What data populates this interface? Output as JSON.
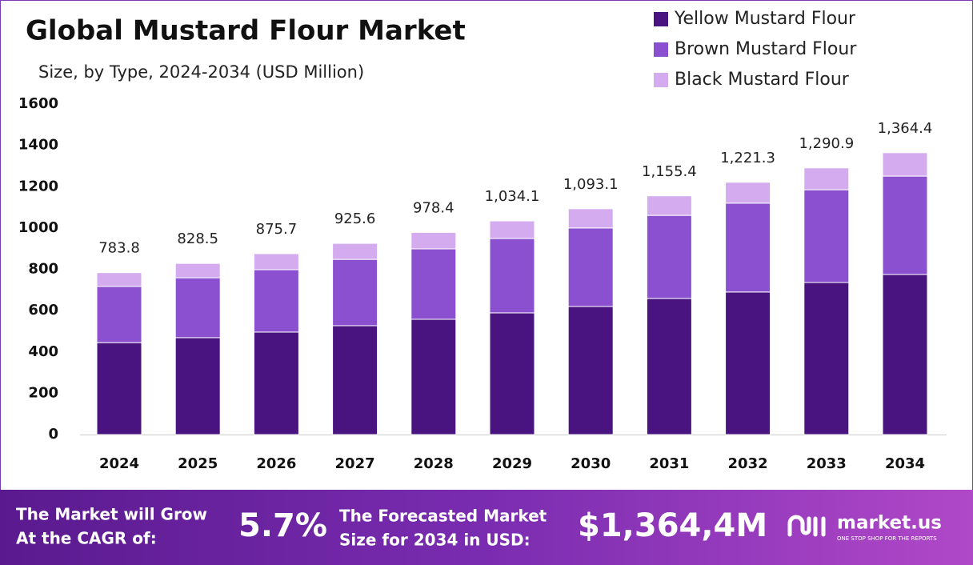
{
  "chart_data": {
    "type": "stacked_bar",
    "title": "Global Mustard Flour Market",
    "subtitle": "Size, by Type, 2024-2034 (USD Million)",
    "categories": [
      "2024",
      "2025",
      "2026",
      "2027",
      "2028",
      "2029",
      "2030",
      "2031",
      "2032",
      "2033",
      "2034"
    ],
    "series": [
      {
        "name": "Yellow Mustard Flour",
        "color": "#4a1480",
        "values": [
          445,
          469,
          496,
          527,
          558,
          589,
          620,
          659,
          690,
          736,
          775
        ]
      },
      {
        "name": "Brown Mustard Flour",
        "color": "#8a50cf",
        "values": [
          272,
          290,
          302,
          321,
          341,
          360,
          380,
          402,
          430,
          449,
          476
        ]
      },
      {
        "name": "Black Mustard Flour",
        "color": "#d3abee",
        "values": [
          66.8,
          69.5,
          77.7,
          77.6,
          79.4,
          85.1,
          93.1,
          94.4,
          101.3,
          105.9,
          113.4
        ]
      }
    ],
    "totals": [
      783.8,
      828.5,
      875.7,
      925.6,
      978.4,
      {
        "value": 1034.1,
        "label": "1,034.1"
      },
      {
        "value": 1093.1,
        "label": "1,093.1"
      },
      {
        "value": 1155.4,
        "label": "1,155.4"
      },
      {
        "value": 1221.3,
        "label": "1,221.3"
      },
      {
        "value": 1290.9,
        "label": "1,290.9"
      },
      {
        "value": 1364.4,
        "label": "1,364.4"
      }
    ],
    "ylim": [
      0,
      1600
    ],
    "yticks": [
      0,
      200,
      400,
      600,
      800,
      1000,
      1200,
      1400,
      1600
    ],
    "grid": false,
    "legend": "top-right"
  },
  "banner": {
    "cagr_text_1": "The Market will Grow",
    "cagr_text_2": "At the CAGR of:",
    "cagr": "5.7%",
    "forecast_text_1": "The Forecasted Market",
    "forecast_text_2": "Size for 2034 in USD:",
    "forecast": "$1,364,4M",
    "brand": "market.us",
    "tagline": "ONE STOP SHOP FOR THE REPORTS"
  }
}
